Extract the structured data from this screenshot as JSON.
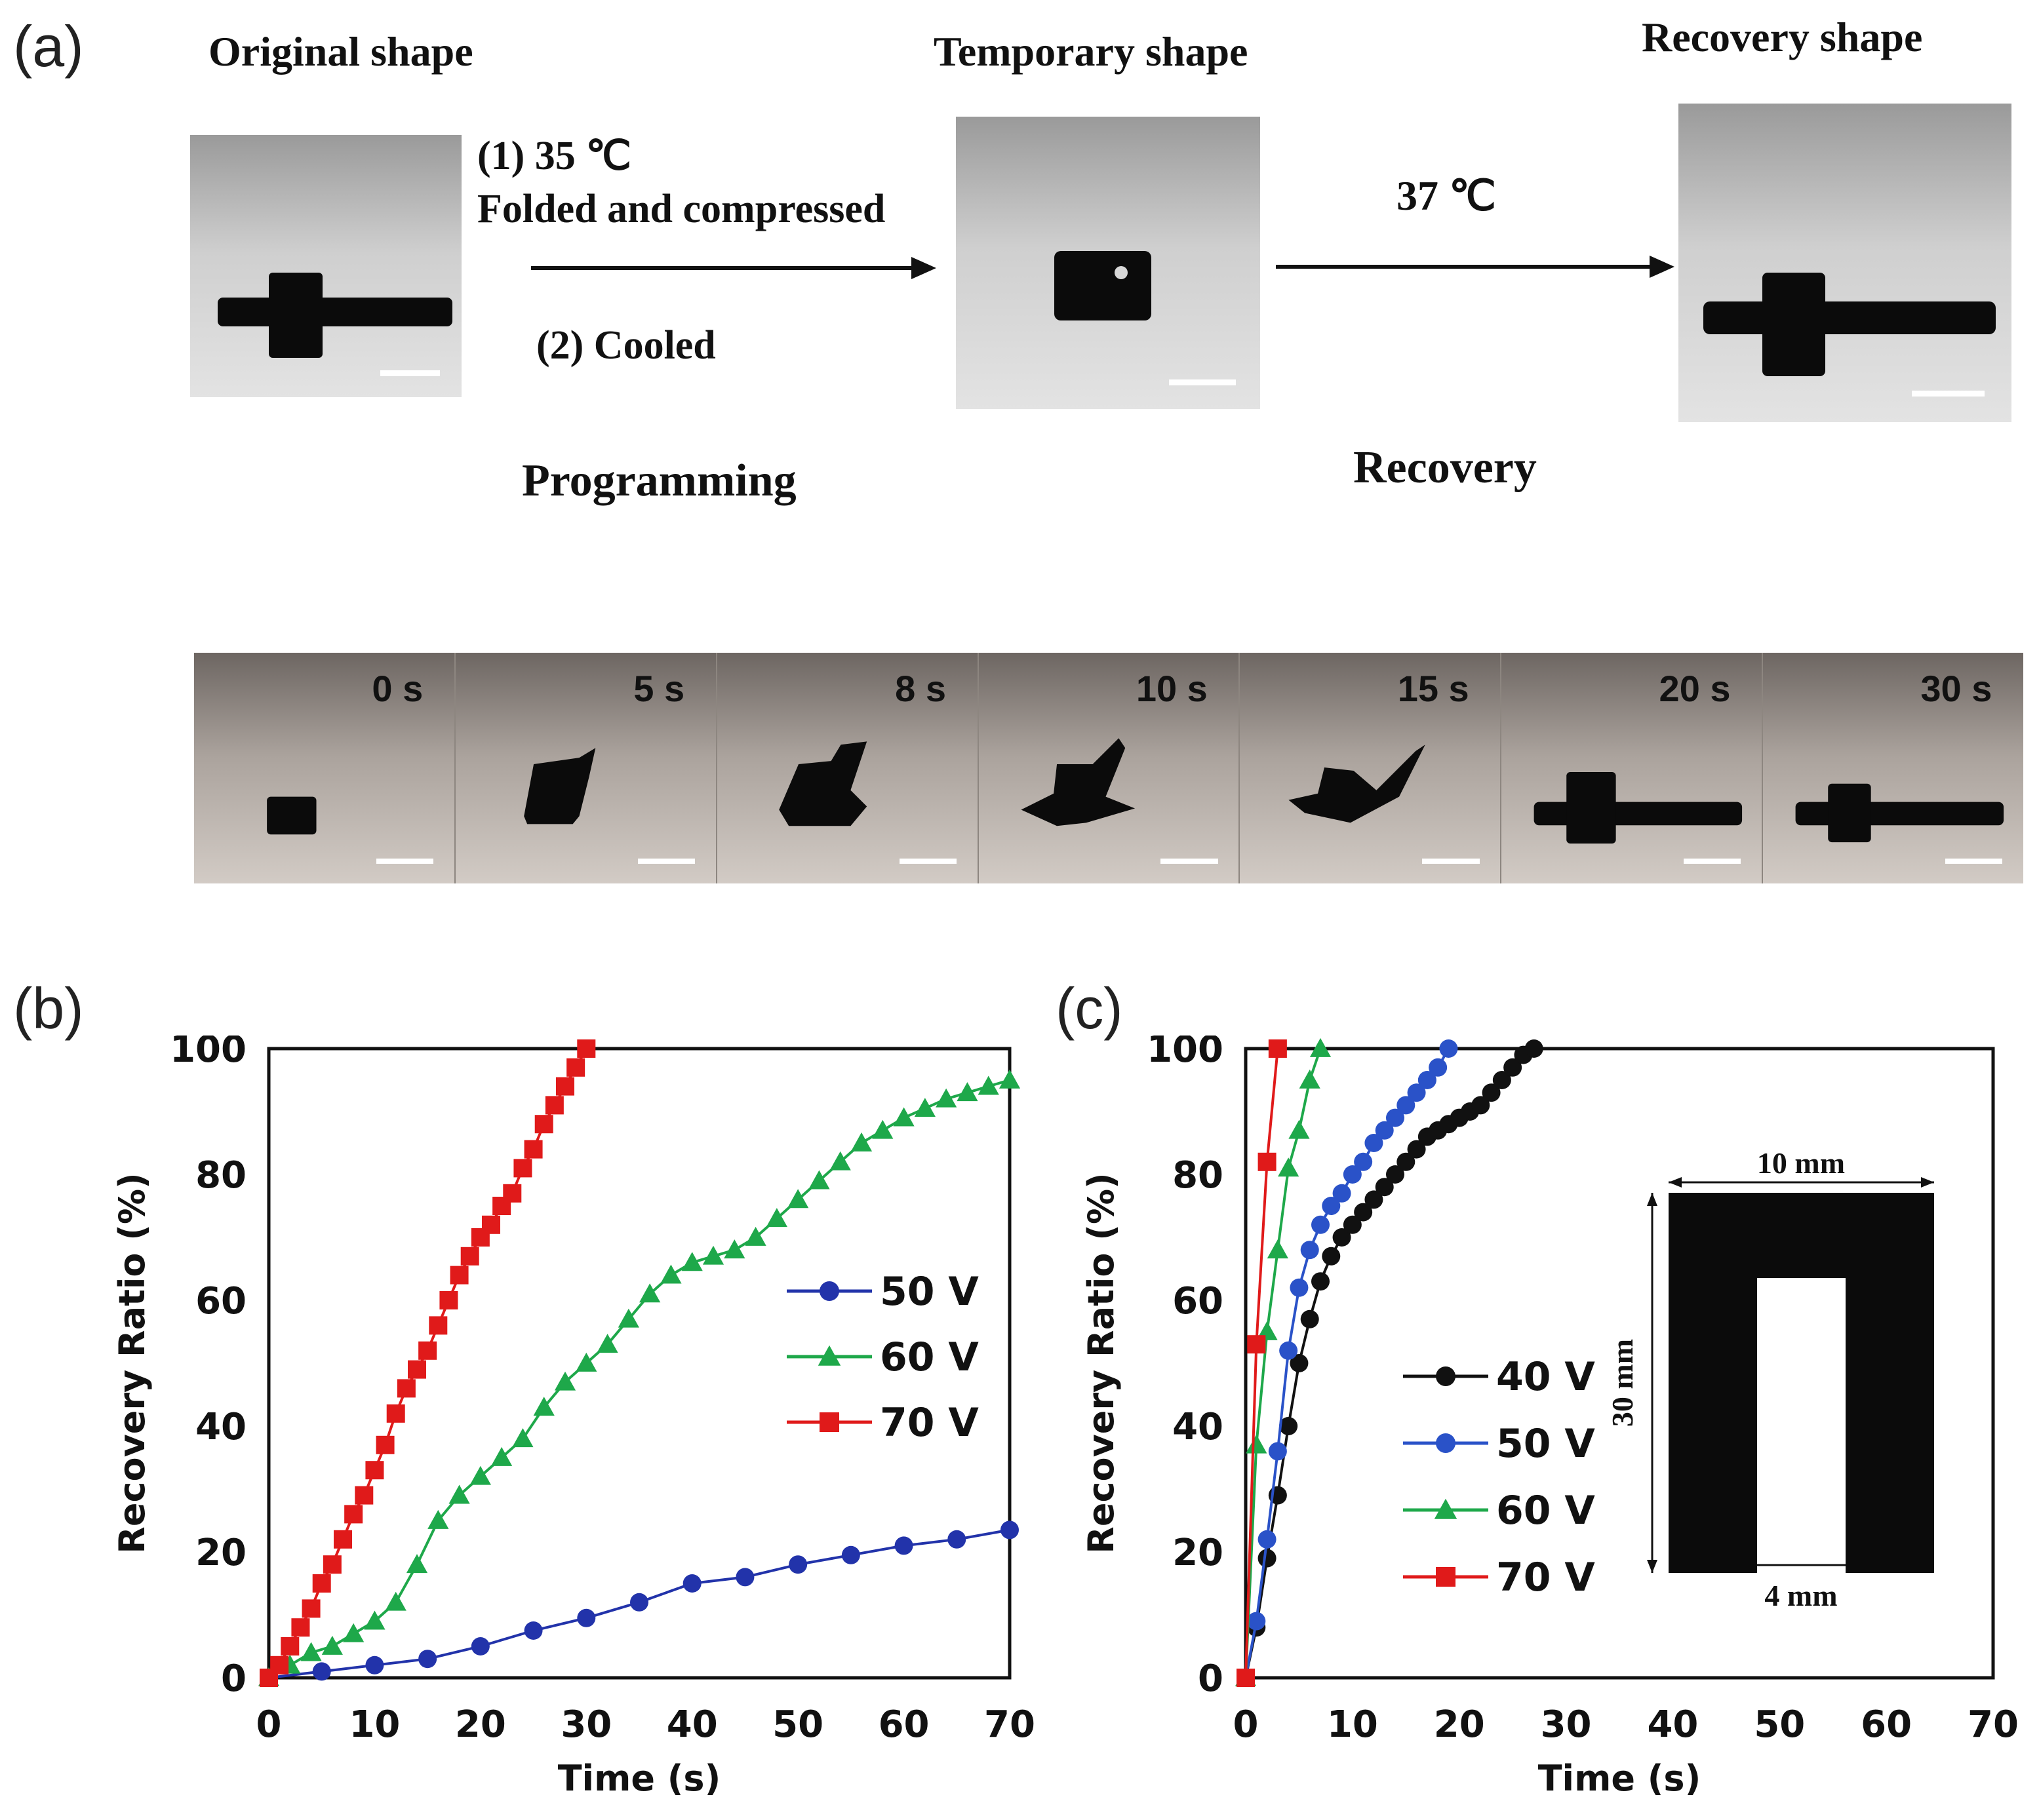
{
  "panel_a": {
    "label": "(a)",
    "original_title": "Original shape",
    "temporary_title": "Temporary shape",
    "recovery_title": "Recovery shape",
    "step1": "(1) 35 ℃",
    "step1b": "Folded and  compressed",
    "step2": "(2) Cooled",
    "programming": "Programming",
    "temp_label": "37  ℃",
    "recovery_label": "Recovery",
    "strip_times": [
      "0 s",
      "5 s",
      "8 s",
      "10 s",
      "15 s",
      "20 s",
      "30 s"
    ]
  },
  "panel_b": {
    "label": "(b)"
  },
  "panel_c": {
    "label": "(c)"
  },
  "chart_data": [
    {
      "id": "b",
      "type": "line",
      "xlabel": "Time (s)",
      "ylabel": "Recovery Ratio (%)",
      "xlim": [
        0,
        70
      ],
      "ylim": [
        0,
        100
      ],
      "xticks": [
        0,
        10,
        20,
        30,
        40,
        50,
        60,
        70
      ],
      "yticks": [
        0,
        20,
        40,
        60,
        80,
        100
      ],
      "legend_position": "center-right",
      "series": [
        {
          "name": "50 V",
          "color": "#2233aa",
          "marker": "circle",
          "x": [
            0,
            5,
            10,
            15,
            20,
            25,
            30,
            35,
            40,
            45,
            50,
            55,
            60,
            65,
            70
          ],
          "y": [
            0,
            1,
            2,
            3,
            5,
            7.5,
            9.5,
            12,
            15,
            16,
            18,
            19.5,
            21,
            22,
            23.5
          ]
        },
        {
          "name": "60 V",
          "color": "#1ea84a",
          "marker": "triangle",
          "x": [
            0,
            2,
            4,
            6,
            8,
            10,
            12,
            14,
            16,
            18,
            20,
            22,
            24,
            26,
            28,
            30,
            32,
            34,
            36,
            38,
            40,
            42,
            44,
            46,
            48,
            50,
            52,
            54,
            56,
            58,
            60,
            62,
            64,
            66,
            68,
            70
          ],
          "y": [
            0,
            2,
            4,
            5,
            7,
            9,
            12,
            18,
            25,
            29,
            32,
            35,
            38,
            43,
            47,
            50,
            53,
            57,
            61,
            64,
            66,
            67,
            68,
            70,
            73,
            76,
            79,
            82,
            85,
            87,
            89,
            90.5,
            92,
            93,
            94,
            95
          ]
        },
        {
          "name": "70 V",
          "color": "#e01a1a",
          "marker": "square",
          "x": [
            0,
            1,
            2,
            3,
            4,
            5,
            6,
            7,
            8,
            9,
            10,
            11,
            12,
            13,
            14,
            15,
            16,
            17,
            18,
            19,
            20,
            21,
            22,
            23,
            24,
            25,
            26,
            27,
            28,
            29,
            30
          ],
          "y": [
            0,
            2,
            5,
            8,
            11,
            15,
            18,
            22,
            26,
            29,
            33,
            37,
            42,
            46,
            49,
            52,
            56,
            60,
            64,
            67,
            70,
            72,
            75,
            77,
            81,
            84,
            88,
            91,
            94,
            97,
            100
          ]
        }
      ]
    },
    {
      "id": "c",
      "type": "line",
      "xlabel": "Time (s)",
      "ylabel": "Recovery Ratio (%)",
      "xlim": [
        0,
        70
      ],
      "ylim": [
        0,
        100
      ],
      "xticks": [
        0,
        10,
        20,
        30,
        40,
        50,
        60,
        70
      ],
      "yticks": [
        0,
        20,
        40,
        60,
        80,
        100
      ],
      "legend_position": "center",
      "series": [
        {
          "name": "40 V",
          "color": "#111111",
          "marker": "circle",
          "x": [
            0,
            1,
            2,
            3,
            4,
            5,
            6,
            7,
            8,
            9,
            10,
            11,
            12,
            13,
            14,
            15,
            16,
            17,
            18,
            19,
            20,
            21,
            22,
            23,
            24,
            25,
            26,
            27
          ],
          "y": [
            0,
            8,
            19,
            29,
            40,
            50,
            57,
            63,
            67,
            70,
            72,
            74,
            76,
            78,
            80,
            82,
            84,
            86,
            87,
            88,
            89,
            90,
            91,
            93,
            95,
            97,
            99,
            100
          ]
        },
        {
          "name": "50 V",
          "color": "#2a52c8",
          "marker": "circle",
          "x": [
            0,
            1,
            2,
            3,
            4,
            5,
            6,
            7,
            8,
            9,
            10,
            11,
            12,
            13,
            14,
            15,
            16,
            17,
            18,
            19
          ],
          "y": [
            0,
            9,
            22,
            36,
            52,
            62,
            68,
            72,
            75,
            77,
            80,
            82,
            85,
            87,
            89,
            91,
            93,
            95,
            97,
            100
          ]
        },
        {
          "name": "60 V",
          "color": "#1ea84a",
          "marker": "triangle",
          "x": [
            0,
            1,
            2,
            3,
            4,
            5,
            6,
            7
          ],
          "y": [
            0,
            37,
            55,
            68,
            81,
            87,
            95,
            100
          ]
        },
        {
          "name": "70 V",
          "color": "#e01a1a",
          "marker": "square",
          "x": [
            0,
            1,
            2,
            3
          ],
          "y": [
            0,
            53,
            82,
            100
          ]
        }
      ],
      "inset": {
        "width_label": "10 mm",
        "height_label": "30 mm",
        "gap_label": "4 mm"
      }
    }
  ]
}
